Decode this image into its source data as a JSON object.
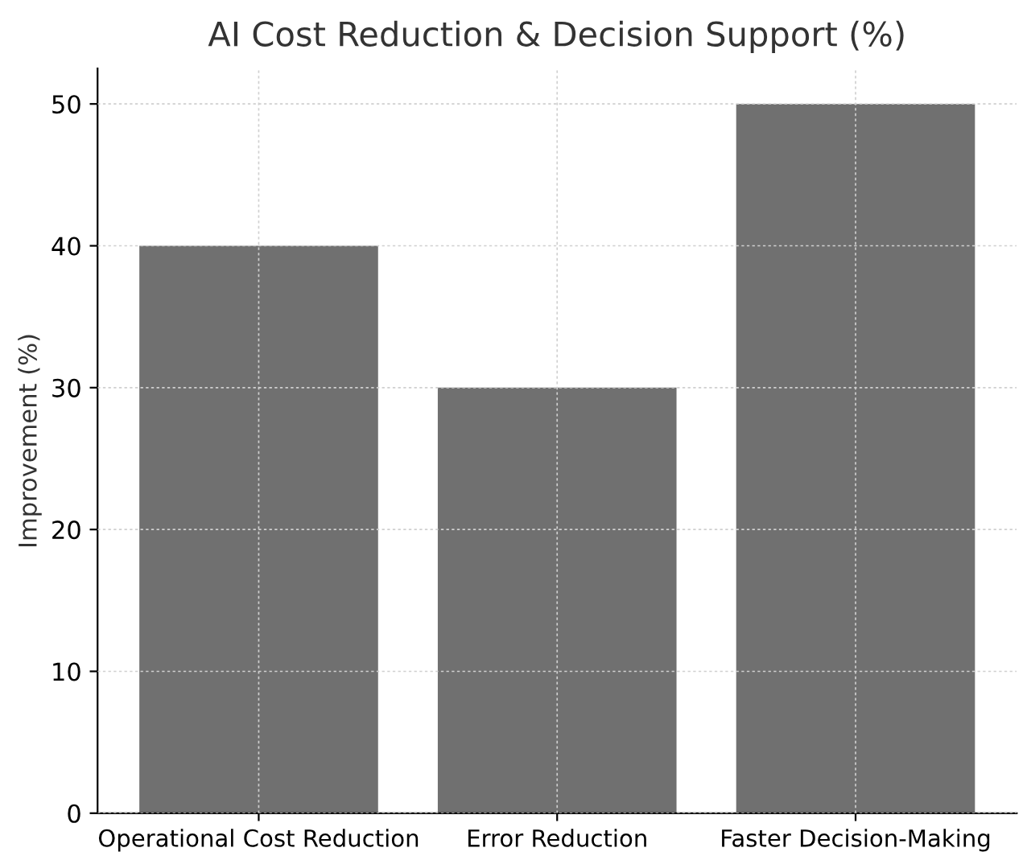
{
  "chart_data": {
    "type": "bar",
    "title": "AI Cost Reduction & Decision Support (%)",
    "ylabel": "Improvement (%)",
    "categories": [
      "Operational Cost Reduction",
      "Error Reduction",
      "Faster Decision-Making"
    ],
    "values": [
      40,
      30,
      50
    ],
    "color": "#707070",
    "ylim": [
      0,
      52.5
    ],
    "yticks": [
      0,
      10,
      20,
      30,
      40,
      50
    ],
    "grid": true
  }
}
